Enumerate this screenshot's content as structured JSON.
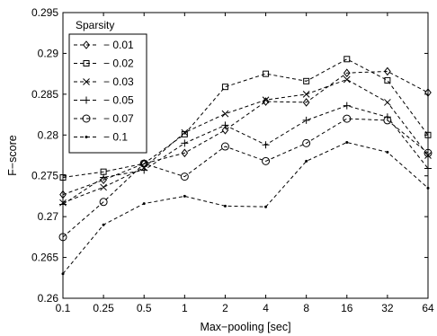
{
  "chart_data": {
    "type": "line",
    "xlabel": "Max−pooling [sec]",
    "ylabel": "F−score",
    "categories": [
      "0.1",
      "0.25",
      "0.5",
      "1",
      "2",
      "4",
      "8",
      "16",
      "32",
      "64"
    ],
    "ylim": [
      0.26,
      0.295
    ],
    "yticks": [
      "0.26",
      "0.265",
      "0.27",
      "0.275",
      "0.28",
      "0.285",
      "0.29",
      "0.295"
    ],
    "yticks_values": [
      0.26,
      0.265,
      0.27,
      0.275,
      0.28,
      0.285,
      0.29,
      0.295
    ],
    "grid": false,
    "legend": {
      "title": "Sparsity",
      "placement": "top-left"
    },
    "series": [
      {
        "name": "0.01",
        "marker": "diamond",
        "values": [
          0.2727,
          0.2745,
          0.2765,
          0.2778,
          0.2806,
          0.2841,
          0.284,
          0.2876,
          0.2878,
          0.2852
        ]
      },
      {
        "name": "0.02",
        "marker": "square",
        "values": [
          0.2748,
          0.2755,
          0.2765,
          0.2801,
          0.2859,
          0.2875,
          0.2866,
          0.2893,
          0.2867,
          0.28
        ]
      },
      {
        "name": "0.03",
        "marker": "x",
        "values": [
          0.2717,
          0.2736,
          0.276,
          0.2803,
          0.2826,
          0.2843,
          0.285,
          0.2868,
          0.284,
          0.2775
        ]
      },
      {
        "name": "0.05",
        "marker": "plus",
        "values": [
          0.2715,
          0.2748,
          0.2757,
          0.279,
          0.2812,
          0.2788,
          0.2818,
          0.2836,
          0.2822,
          0.2759
        ]
      },
      {
        "name": "0.07",
        "marker": "circle",
        "values": [
          0.2675,
          0.2718,
          0.2765,
          0.2749,
          0.2786,
          0.2768,
          0.279,
          0.282,
          0.2818,
          0.2778
        ]
      },
      {
        "name": "0.1",
        "marker": "point",
        "values": [
          0.263,
          0.269,
          0.2716,
          0.2725,
          0.2713,
          0.2712,
          0.2768,
          0.2791,
          0.2779,
          0.2735
        ]
      }
    ],
    "colors": {
      "line": "#000000",
      "background": "#ffffff"
    }
  }
}
